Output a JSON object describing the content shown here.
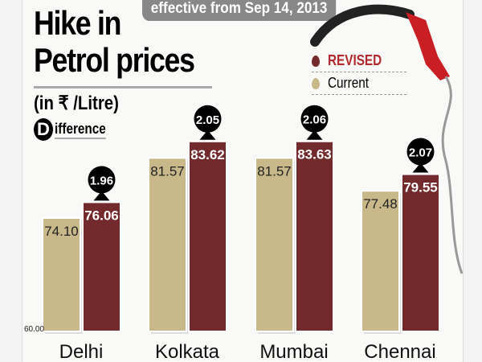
{
  "header": {
    "title_line1": "Hike in",
    "title_line2": "Petrol prices",
    "unit": "(in ₹ /Litre)",
    "effective": "effective from Sep 14, 2013",
    "difference_initial": "D",
    "difference_label": "ifference"
  },
  "colors": {
    "revised": "#732a2d",
    "current": "#c9b98a",
    "bubble": "#000000",
    "revised_text": "#b22a2f"
  },
  "icons": [
    "fuel-nozzle-icon",
    "drop-icon"
  ],
  "chart_data": {
    "type": "bar",
    "title": "Hike in Petrol prices",
    "ylabel": "(in ₹ /Litre)",
    "categories": [
      "Delhi",
      "Kolkata",
      "Mumbai",
      "Chennai"
    ],
    "series": [
      {
        "name": "Current",
        "values": [
          74.1,
          81.57,
          81.57,
          77.48
        ],
        "labels": [
          "74.10",
          "81.57",
          "81.57",
          "77.48"
        ]
      },
      {
        "name": "REVISED",
        "values": [
          76.06,
          83.62,
          83.63,
          79.55
        ],
        "labels": [
          "76.06",
          "83.62",
          "83.63",
          "79.55"
        ]
      }
    ],
    "differences": [
      "1.96",
      "2.05",
      "2.06",
      "2.07"
    ],
    "baseline_label": "60.00",
    "ylim": [
      60,
      86
    ],
    "legend": "top-right"
  }
}
